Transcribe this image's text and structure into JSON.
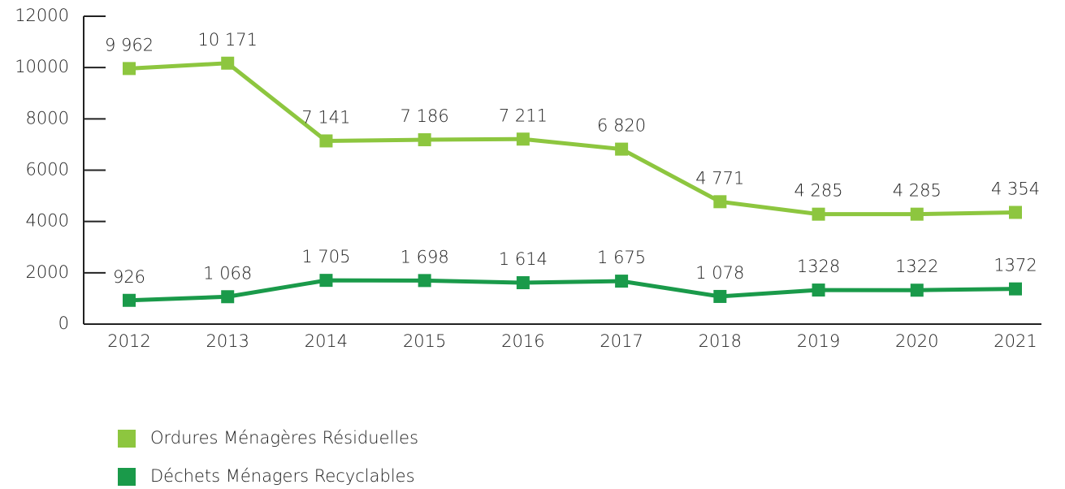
{
  "chart_data": {
    "type": "line",
    "categories": [
      "2012",
      "2013",
      "2014",
      "2015",
      "2016",
      "2017",
      "2018",
      "2019",
      "2020",
      "2021"
    ],
    "series": [
      {
        "name": "Ordures Ménagères Résiduelles",
        "color": "#8dc63f",
        "values": [
          9962,
          10171,
          7141,
          7186,
          7211,
          6820,
          4771,
          4285,
          4285,
          4354
        ],
        "value_labels": [
          "9 962",
          "10 171",
          "7 141",
          "7 186",
          "7 211",
          "6 820",
          "4 771",
          "4 285",
          "4 285",
          "4 354"
        ]
      },
      {
        "name": "Déchets Ménagers Recyclables",
        "color": "#1a9a4a",
        "values": [
          926,
          1068,
          1705,
          1698,
          1614,
          1675,
          1078,
          1328,
          1322,
          1372
        ],
        "value_labels": [
          "926",
          "1 068",
          "1 705",
          "1 698",
          "1 614",
          "1 675",
          "1 078",
          "1328",
          "1322",
          "1372"
        ]
      }
    ],
    "ylim": [
      0,
      12000
    ],
    "yticks": [
      0,
      2000,
      4000,
      6000,
      8000,
      10000,
      12000
    ],
    "grid": false,
    "legend": "bottom-left"
  }
}
